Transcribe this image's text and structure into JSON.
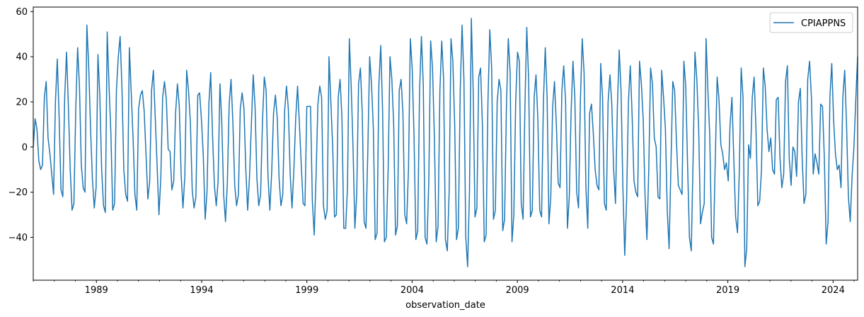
{
  "chart_data": {
    "type": "line",
    "title": "",
    "xlabel": "observation_date",
    "ylabel": "",
    "x_start": "1986-01",
    "x_end": "2025-03",
    "xlim": [
      "1986-01",
      "2025-03"
    ],
    "ylim": [
      -59,
      62
    ],
    "x_ticks": [
      "1989",
      "1994",
      "1999",
      "2004",
      "2009",
      "2014",
      "2019",
      "2024"
    ],
    "y_ticks": [
      "60",
      "40",
      "20",
      "0",
      "−20",
      "−40"
    ],
    "y_tick_values": [
      60,
      40,
      20,
      0,
      -20,
      -40
    ],
    "grid": false,
    "legend_position": "top-right",
    "series": [
      {
        "name": "CPIAPPNS",
        "color": "#1f77b4",
        "monthly_values": [
          0,
          12.5,
          8,
          -6,
          -10,
          -8,
          22,
          29,
          4,
          -3,
          -12,
          -21,
          20,
          39,
          13,
          -19,
          -22,
          22,
          42,
          18,
          -10,
          -28,
          -25,
          17,
          44,
          27,
          -8,
          -18,
          -20,
          54,
          36,
          8,
          -14,
          -27,
          -18,
          41,
          23,
          -10,
          -26,
          -29,
          51,
          27,
          6,
          -28,
          -25,
          25,
          40,
          49,
          26,
          -10,
          -21,
          -24,
          44,
          24,
          4,
          -21,
          -28,
          17,
          23,
          25,
          16,
          -3,
          -23,
          -15,
          25,
          34,
          13,
          -8,
          -30,
          -14,
          22,
          29,
          21,
          -1,
          -2,
          -19,
          -15,
          15,
          28,
          18,
          -12,
          -27,
          -13,
          34,
          25,
          11,
          -19,
          -27,
          -22,
          23,
          24,
          12,
          -4,
          -32,
          -20,
          19,
          33,
          5,
          -17,
          -26,
          -15,
          28,
          11,
          -21,
          -33,
          -16,
          19,
          30,
          11,
          -17,
          -26,
          -21,
          17,
          24,
          17,
          -10,
          -28,
          -13,
          10,
          32,
          18,
          -14,
          -26,
          -21,
          11,
          31,
          25,
          -13,
          -28,
          -11,
          15,
          23,
          13,
          -14,
          -26,
          -21,
          16,
          27,
          17,
          -12,
          -27,
          -10,
          13,
          27,
          10,
          -8,
          -25,
          -26,
          18,
          18,
          18,
          -24,
          -39,
          -13,
          19,
          27,
          22,
          -26,
          -32,
          -28,
          40,
          20,
          0,
          -31,
          -30,
          22,
          30,
          13,
          -36,
          -36,
          -18,
          48,
          27,
          0,
          -36,
          -21,
          28,
          35,
          15,
          -33,
          -36,
          -2,
          40,
          28,
          8,
          -41,
          -38,
          28,
          45,
          16,
          -42,
          -40,
          -10,
          40,
          30,
          10,
          -39,
          -35,
          25,
          30,
          15,
          -30,
          -34,
          -10,
          48,
          35,
          5,
          -41,
          -37,
          25,
          49,
          28,
          -40,
          -43,
          -15,
          47,
          35,
          5,
          -42,
          -35,
          25,
          47,
          30,
          -41,
          -46,
          -20,
          48,
          38,
          10,
          -41,
          -36,
          25,
          54,
          30,
          -40,
          -53,
          -20,
          57,
          25,
          -31,
          -27,
          31,
          35,
          10,
          -42,
          -39,
          20,
          52,
          35,
          -32,
          -28,
          20,
          30,
          25,
          -37,
          -32,
          18,
          48,
          33,
          -42,
          -30,
          20,
          42,
          38,
          -25,
          -32,
          18,
          53,
          30,
          -31,
          -28,
          22,
          32,
          12,
          -28,
          -31,
          20,
          44,
          22,
          -34,
          -22,
          18,
          29,
          10,
          -16,
          -18,
          25,
          36,
          20,
          -36,
          -22,
          16,
          38,
          22,
          -20,
          -27,
          20,
          48,
          33,
          -18,
          -36,
          15,
          19,
          6,
          -10,
          -17,
          -19,
          37,
          22,
          -25,
          -28,
          20,
          32,
          19,
          -10,
          -25,
          17,
          43,
          25,
          -18,
          -48,
          -24,
          20,
          36,
          14,
          -15,
          -20,
          -22,
          38,
          28,
          12,
          -22,
          -41,
          -10,
          35,
          28,
          4,
          0,
          -22,
          -23,
          34,
          22,
          8,
          -28,
          -45,
          -8,
          29,
          25,
          2,
          -17,
          -19,
          -21,
          38,
          27,
          -8,
          -40,
          -46,
          -5,
          42,
          30,
          8,
          -34,
          -29,
          -25,
          48,
          25,
          5,
          -40,
          -43,
          -5,
          31,
          21,
          1,
          -3,
          -10,
          -7,
          -15,
          10,
          22,
          -5,
          -31,
          -38,
          -10,
          35,
          22,
          -53,
          -45,
          1,
          -5,
          22,
          31,
          8,
          -26,
          -24,
          -10,
          35,
          27,
          8,
          -2,
          4,
          -10,
          -12,
          21,
          22,
          -5,
          -18,
          -12,
          29,
          36,
          -5,
          -17,
          0,
          -2,
          -13,
          20,
          26,
          -5,
          -25,
          -21,
          30,
          38,
          22,
          -12,
          -3,
          -7,
          -12,
          19,
          18,
          -5,
          -43,
          -33,
          22,
          37,
          12,
          -3,
          -10,
          -8,
          -18,
          22,
          34,
          10,
          -22,
          -33,
          -13,
          0,
          21,
          40
        ]
      }
    ]
  }
}
